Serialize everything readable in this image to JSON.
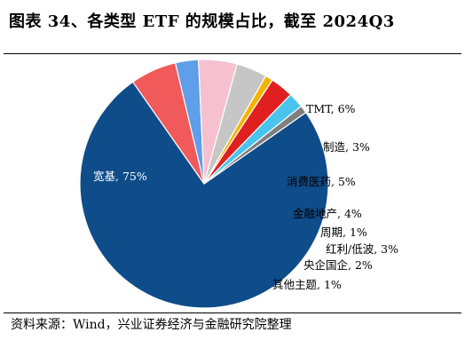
{
  "header": {
    "title": "图表 34、各类型 ETF 的规模占比，截至 2024Q3"
  },
  "footer": {
    "source": "资料来源：Wind，兴业证券经济与金融研究院整理"
  },
  "chart_data": {
    "type": "pie",
    "title": "图表 34、各类型 ETF 的规模占比，截至 2024Q3",
    "unit": "%",
    "slices": [
      {
        "label": "宽基, 75%",
        "name": "宽基",
        "value": 75,
        "color": "#0f4c8a",
        "label_color": "#ffffff"
      },
      {
        "label": "TMT, 6%",
        "name": "TMT",
        "value": 6,
        "color": "#f05a5a",
        "label_color": "#000000"
      },
      {
        "label": "制造, 3%",
        "name": "制造",
        "value": 3,
        "color": "#5f9ee8",
        "label_color": "#000000"
      },
      {
        "label": "消费医药, 5%",
        "name": "消费医药",
        "value": 5,
        "color": "#f6c0cf",
        "label_color": "#000000"
      },
      {
        "label": "金融地产, 4%",
        "name": "金融地产",
        "value": 4,
        "color": "#c6c6c6",
        "label_color": "#000000"
      },
      {
        "label": "周期, 1%",
        "name": "周期",
        "value": 1,
        "color": "#f5b400",
        "label_color": "#000000"
      },
      {
        "label": "红利/低波, 3%",
        "name": "红利/低波",
        "value": 3,
        "color": "#e02020",
        "label_color": "#000000"
      },
      {
        "label": "央企国企, 2%",
        "name": "央企国企",
        "value": 2,
        "color": "#48c4ee",
        "label_color": "#000000"
      },
      {
        "label": "其他主题, 1%",
        "name": "其他主题",
        "value": 1,
        "color": "#7f7f7f",
        "label_color": "#000000"
      }
    ]
  }
}
